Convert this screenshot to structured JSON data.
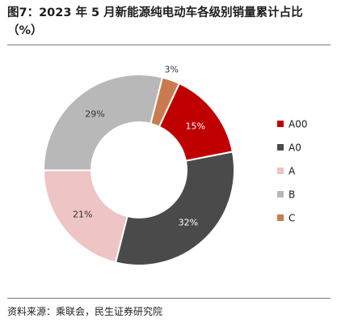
{
  "header": {
    "title": "图7：2023 年 5 月新能源纯电动车各级别销量累计占比（%）"
  },
  "footer": {
    "source": "资料来源：乘联会，民生证券研究院"
  },
  "chart_data": {
    "type": "pie",
    "donut": true,
    "categories": [
      "A00",
      "A0",
      "A",
      "B",
      "C"
    ],
    "values": [
      15,
      32,
      21,
      29,
      3
    ],
    "labels": [
      "15%",
      "32%",
      "21%",
      "29%",
      "3%"
    ],
    "colors": [
      "#c00000",
      "#4a4a4a",
      "#eec4c4",
      "#b8b8b8",
      "#c97b4f"
    ],
    "label_colors": [
      "#ffffff",
      "#ffffff",
      "#333333",
      "#333333",
      "#333333"
    ],
    "legend_position": "right"
  }
}
